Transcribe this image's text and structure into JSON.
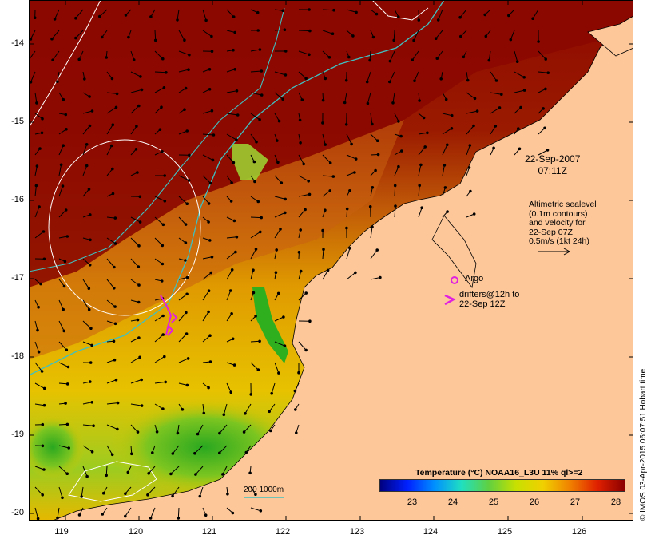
{
  "map": {
    "timestamp_line1": "22-Sep-2007",
    "timestamp_line2": "07:11Z",
    "velocity_note": [
      "Altimetric sealevel",
      "(0.1m contours)",
      "and velocity for",
      "22-Sep 07Z",
      "0.5m/s (1kt 24h)"
    ],
    "argo_label": "Argo",
    "drifter_label_line1": "drifters@12h to",
    "drifter_label_line2": "22-Sep 12Z",
    "scale_label": "200  1000m",
    "legend_title": "Temperature (°C) NOAA16_L3U 11% ql>=2",
    "colorbar_ticks": [
      "23",
      "24",
      "25",
      "26",
      "27",
      "28"
    ],
    "x_ticks": [
      "119",
      "120",
      "121",
      "122",
      "123",
      "124",
      "125",
      "126"
    ],
    "y_ticks": [
      "-14",
      "-15",
      "-16",
      "-17",
      "-18",
      "-19",
      "-20"
    ],
    "credit": "© IMOS 03-Apr-2015 06:07:51 Hobart time",
    "colors": {
      "land": "#fdc79a",
      "sst_hot": "#8b0000",
      "sst_warm": "#c45a0a",
      "sst_mid": "#e6a800",
      "sst_cool": "#2fae1e",
      "contour_200_1000m": "#40c0c0",
      "argo_marker": "#e020e0"
    },
    "icons": [
      "argo-marker-icon",
      "drifter-arrow-icon",
      "velocity-scale-arrow-icon"
    ]
  }
}
